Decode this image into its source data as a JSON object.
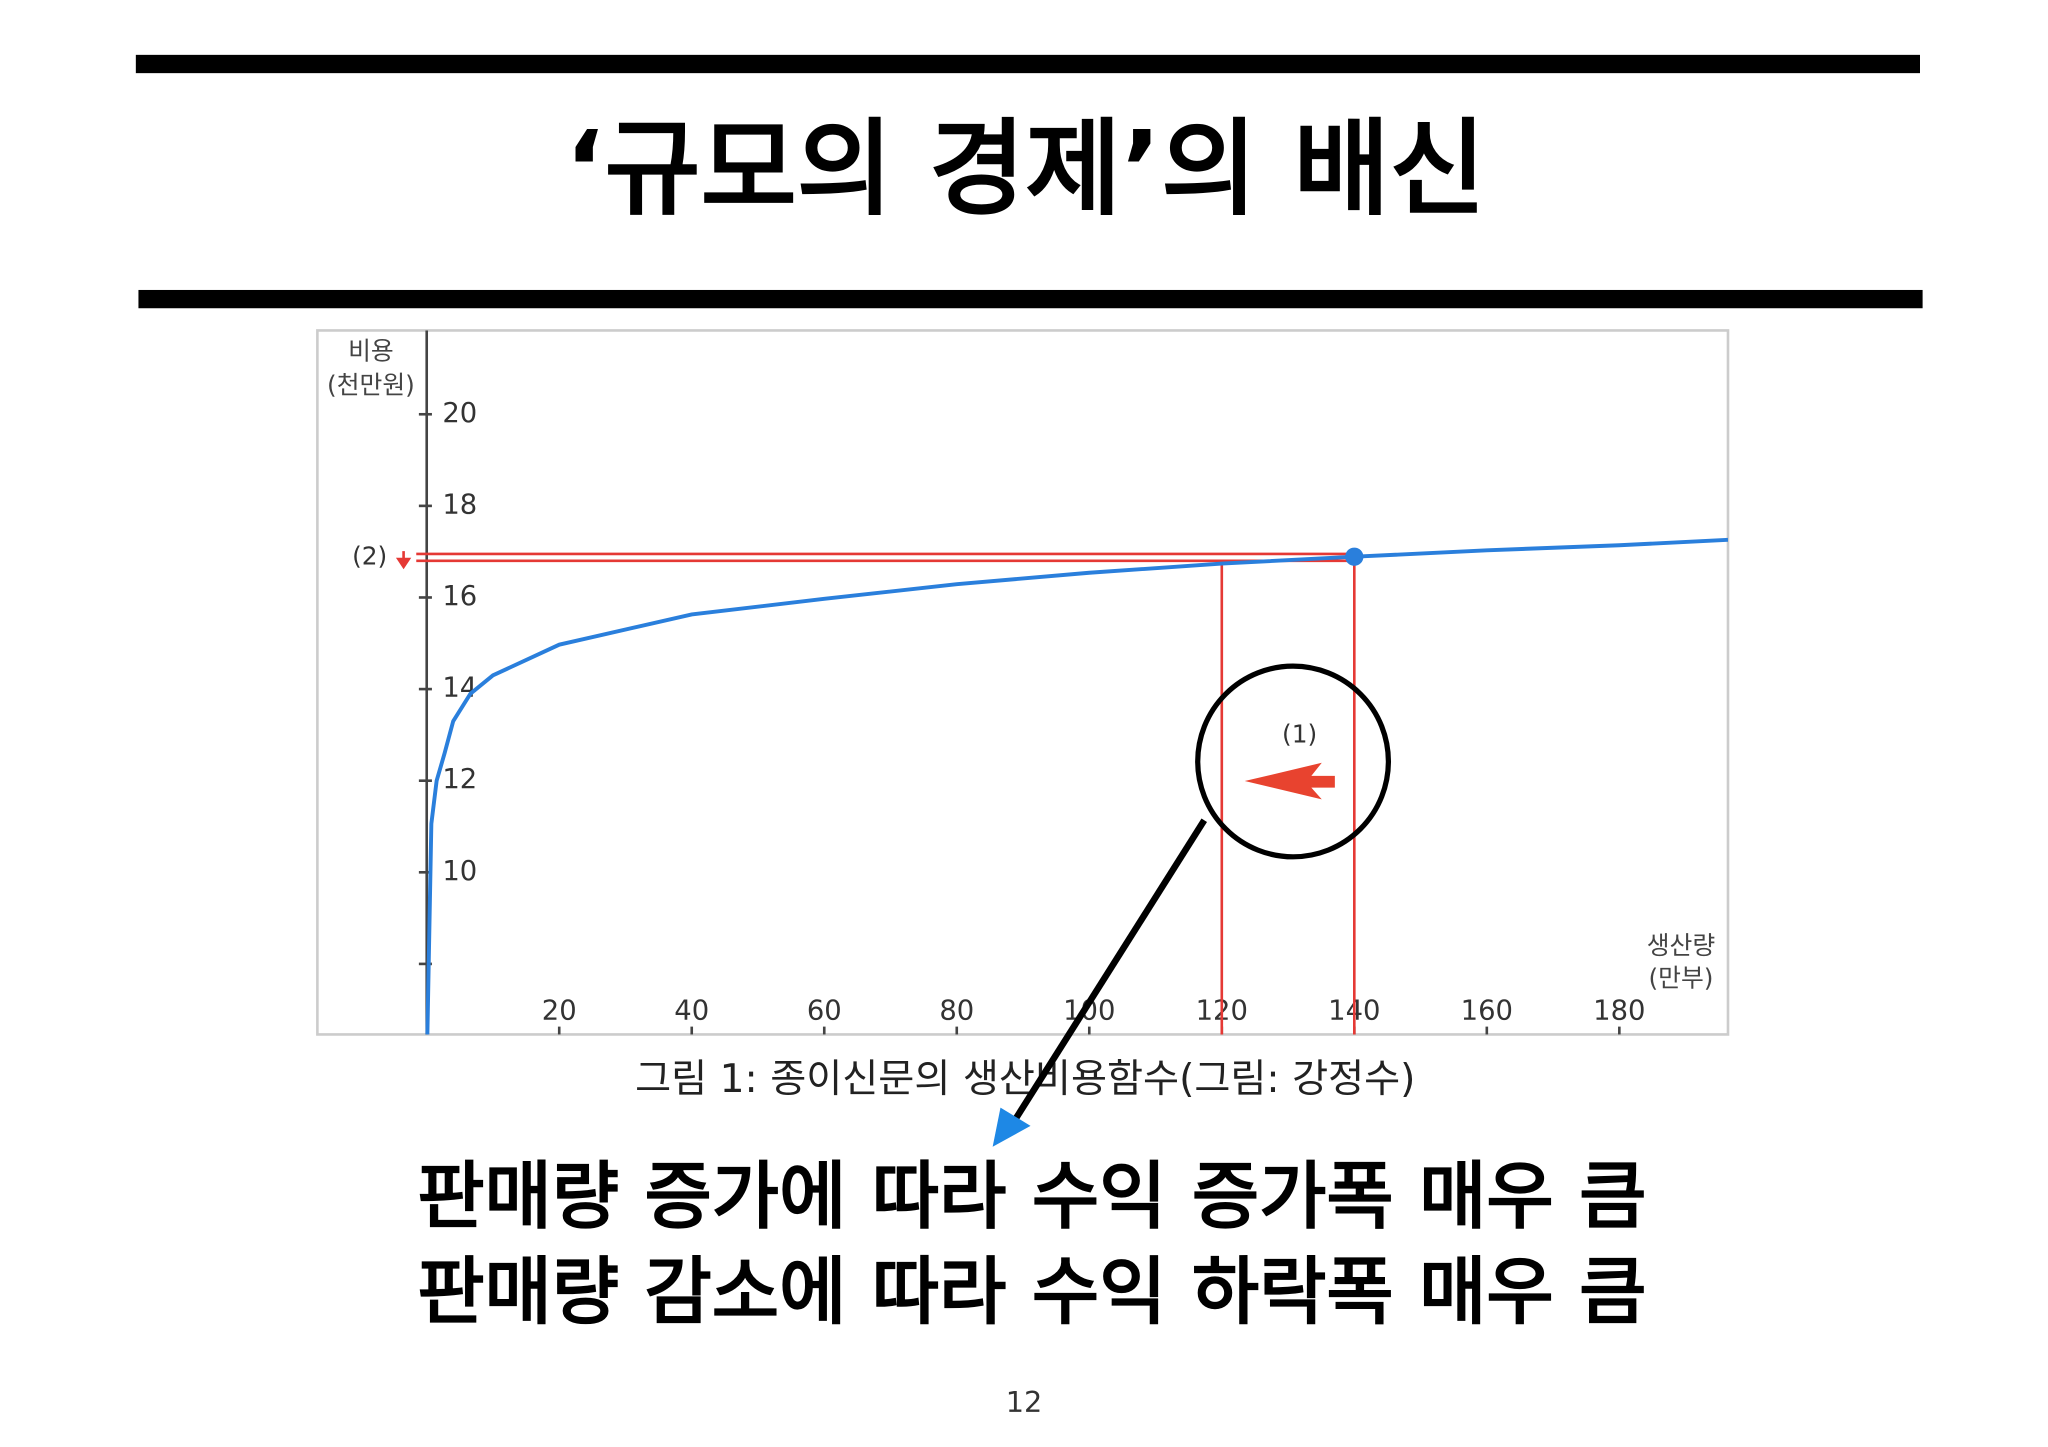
{
  "title": "‘규모의 경제’의 배신",
  "chart_data": {
    "type": "line",
    "y_label": [
      "비용",
      "(천만원)"
    ],
    "x_label": [
      "생산량",
      "(만부)"
    ],
    "x": [
      0.1,
      0.7,
      1.5,
      2.7,
      4,
      6.6,
      10,
      20,
      40,
      60,
      80,
      100,
      120,
      140,
      160,
      180,
      196.4
    ],
    "values": [
      6.46,
      11.06,
      12.0,
      12.6,
      13.3,
      13.9,
      14.3,
      14.97,
      15.63,
      15.97,
      16.29,
      16.54,
      16.74,
      16.89,
      17.03,
      17.14,
      17.26
    ],
    "color": "#2a7fdc",
    "xlim": [
      -16.5,
      196.4
    ],
    "ylim": [
      6.46,
      21.83
    ],
    "xticks": [
      20,
      40,
      60,
      80,
      100,
      120,
      140,
      160,
      180
    ],
    "yticks": [
      10,
      12,
      14,
      16,
      18,
      20
    ],
    "point": {
      "x": 140,
      "y": 16.89
    },
    "reference_lines": {
      "color": "#e53935",
      "y": [
        16.95,
        16.8
      ],
      "x": [
        120,
        140
      ]
    },
    "annotations": [
      "(1)",
      "(2)"
    ]
  },
  "caption": "그림 1: 종이신문의 생산비용함수(그림: 강정수)",
  "body": [
    "판매량 증가에 따라 수익 증가폭 매우 큼",
    "판매량 감소에 따라 수익 하락폭 매우 큼"
  ],
  "page_number": "12"
}
